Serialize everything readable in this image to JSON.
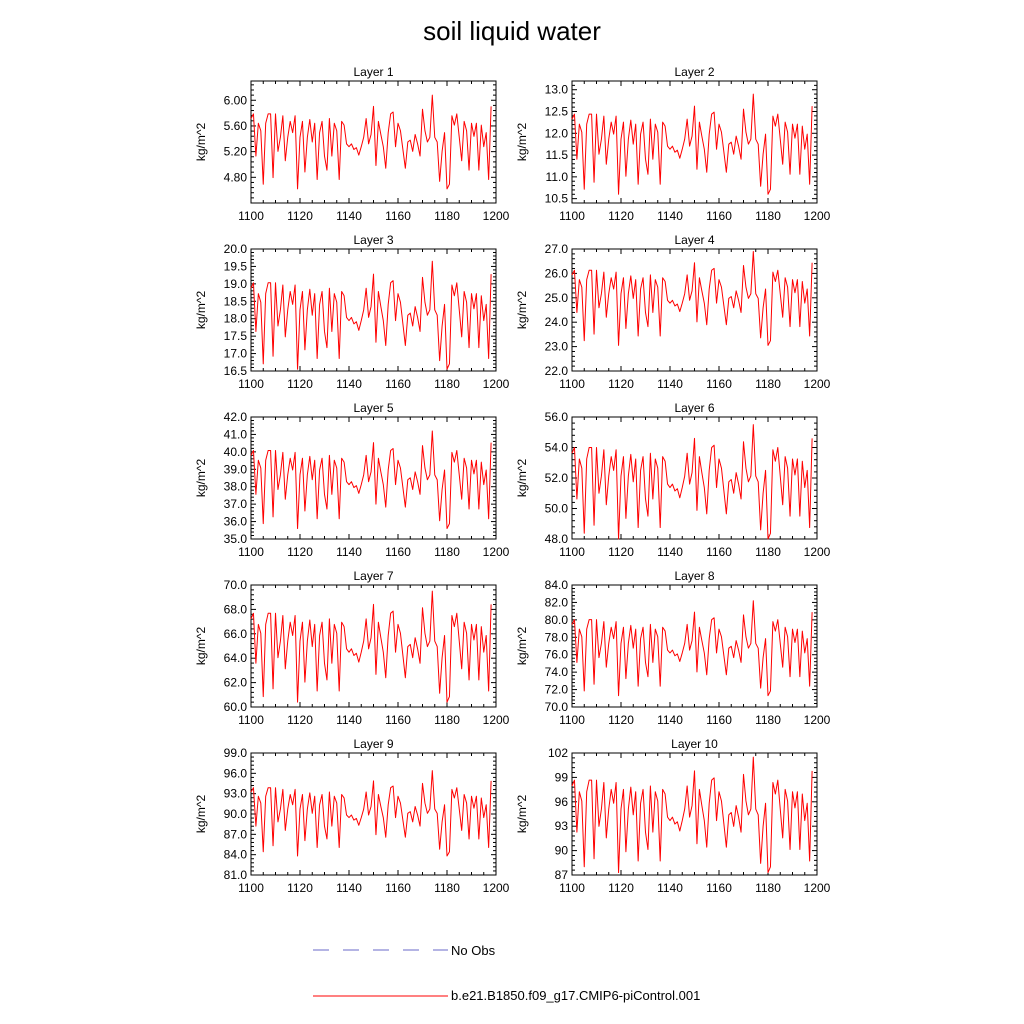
{
  "chart_data": {
    "type": "line",
    "title": "soil liquid water",
    "xlabel": "",
    "ylabel": "kg/m^2",
    "xlim": [
      1100,
      1200
    ],
    "x_ticks": [
      1100,
      1120,
      1140,
      1160,
      1180,
      1200
    ],
    "x": [
      1100,
      1101,
      1102,
      1103,
      1104,
      1105,
      1106,
      1107,
      1108,
      1109,
      1110,
      1111,
      1112,
      1113,
      1114,
      1115,
      1116,
      1117,
      1118,
      1119,
      1120,
      1121,
      1122,
      1123,
      1124,
      1125,
      1126,
      1127,
      1128,
      1129,
      1130,
      1131,
      1132,
      1133,
      1134,
      1135,
      1136,
      1137,
      1138,
      1139,
      1140,
      1141,
      1142,
      1143,
      1144,
      1145,
      1146,
      1147,
      1148,
      1149,
      1150,
      1151,
      1152,
      1153,
      1154,
      1155,
      1156,
      1157,
      1158,
      1159,
      1160,
      1161,
      1162,
      1163,
      1164,
      1165,
      1166,
      1167,
      1168,
      1169,
      1170,
      1171,
      1172,
      1173,
      1174,
      1175,
      1176,
      1177,
      1178,
      1179,
      1180,
      1181,
      1182,
      1183,
      1184,
      1185,
      1186,
      1187,
      1188,
      1189,
      1190,
      1191,
      1192,
      1193,
      1194,
      1195,
      1196,
      1197,
      1198
    ],
    "normalized_pattern": [
      0.75,
      0.8,
      0.35,
      0.7,
      0.62,
      0.05,
      0.7,
      0.8,
      0.8,
      0.12,
      0.8,
      0.4,
      0.55,
      0.78,
      0.3,
      0.55,
      0.72,
      0.6,
      0.78,
      0.0,
      0.55,
      0.72,
      0.18,
      0.55,
      0.74,
      0.5,
      0.7,
      0.1,
      0.6,
      0.72,
      0.35,
      0.2,
      0.75,
      0.35,
      0.7,
      0.62,
      0.1,
      0.72,
      0.68,
      0.48,
      0.45,
      0.48,
      0.42,
      0.44,
      0.36,
      0.45,
      0.55,
      0.75,
      0.48,
      0.58,
      0.88,
      0.25,
      0.72,
      0.58,
      0.45,
      0.22,
      0.6,
      0.8,
      0.82,
      0.45,
      0.7,
      0.62,
      0.42,
      0.22,
      0.5,
      0.52,
      0.4,
      0.58,
      0.48,
      0.35,
      0.85,
      0.62,
      0.5,
      0.55,
      1.0,
      0.55,
      0.5,
      0.08,
      0.4,
      0.6,
      0.0,
      0.05,
      0.78,
      0.68,
      0.8,
      0.55,
      0.3,
      0.72,
      0.62,
      0.2,
      0.7,
      0.56,
      0.7,
      0.2,
      0.68,
      0.45,
      0.6,
      0.1,
      0.88
    ],
    "series_name": "b.e21.B1850.f09_g17.CMIP6-piControl.001",
    "series_color": "#ff0000",
    "panels": [
      {
        "title": "Layer 1",
        "ylim": [
          4.4,
          6.3
        ],
        "y_ticks": [
          4.8,
          5.2,
          5.6,
          6.0
        ],
        "y_tick_labels": [
          "4.80",
          "5.20",
          "5.60",
          "6.00"
        ],
        "data_min": 4.62,
        "data_max": 6.08
      },
      {
        "title": "Layer 2",
        "ylim": [
          10.4,
          13.2
        ],
        "y_ticks": [
          10.5,
          11.0,
          11.5,
          12.0,
          12.5,
          13.0
        ],
        "y_tick_labels": [
          "10.5",
          "11.0",
          "11.5",
          "12.0",
          "12.5",
          "13.0"
        ],
        "data_min": 10.6,
        "data_max": 12.9
      },
      {
        "title": "Layer 3",
        "ylim": [
          16.5,
          20.0
        ],
        "y_ticks": [
          16.5,
          17.0,
          17.5,
          18.0,
          18.5,
          19.0,
          19.5,
          20.0
        ],
        "y_tick_labels": [
          "16.5",
          "17.0",
          "17.5",
          "18.0",
          "18.5",
          "19.0",
          "19.5",
          "20.0"
        ],
        "data_min": 16.55,
        "data_max": 19.65
      },
      {
        "title": "Layer 4",
        "ylim": [
          22.0,
          27.0
        ],
        "y_ticks": [
          22.0,
          23.0,
          24.0,
          25.0,
          26.0,
          27.0
        ],
        "y_tick_labels": [
          "22.0",
          "23.0",
          "24.0",
          "25.0",
          "26.0",
          "27.0"
        ],
        "data_min": 23.05,
        "data_max": 26.9
      },
      {
        "title": "Layer 5",
        "ylim": [
          35.0,
          42.0
        ],
        "y_ticks": [
          35.0,
          36.0,
          37.0,
          38.0,
          39.0,
          40.0,
          41.0,
          42.0
        ],
        "y_tick_labels": [
          "35.0",
          "36.0",
          "37.0",
          "38.0",
          "39.0",
          "40.0",
          "41.0",
          "42.0"
        ],
        "data_min": 35.6,
        "data_max": 41.2
      },
      {
        "title": "Layer 6",
        "ylim": [
          48.0,
          56.0
        ],
        "y_ticks": [
          48.0,
          50.0,
          52.0,
          54.0,
          56.0
        ],
        "y_tick_labels": [
          "48.0",
          "50.0",
          "52.0",
          "54.0",
          "56.0"
        ],
        "data_min": 48.0,
        "data_max": 55.5
      },
      {
        "title": "Layer 7",
        "ylim": [
          60.0,
          70.0
        ],
        "y_ticks": [
          60.0,
          62.0,
          64.0,
          66.0,
          68.0,
          70.0
        ],
        "y_tick_labels": [
          "60.0",
          "62.0",
          "64.0",
          "66.0",
          "68.0",
          "70.0"
        ],
        "data_min": 60.4,
        "data_max": 69.5
      },
      {
        "title": "Layer 8",
        "ylim": [
          70.0,
          84.0
        ],
        "y_ticks": [
          70.0,
          72.0,
          74.0,
          76.0,
          78.0,
          80.0,
          82.0,
          84.0
        ],
        "y_tick_labels": [
          "70.0",
          "72.0",
          "74.0",
          "76.0",
          "78.0",
          "80.0",
          "82.0",
          "84.0"
        ],
        "data_min": 71.3,
        "data_max": 82.2
      },
      {
        "title": "Layer 9",
        "ylim": [
          81.0,
          99.0
        ],
        "y_ticks": [
          81.0,
          84.0,
          87.0,
          90.0,
          93.0,
          96.0,
          99.0
        ],
        "y_tick_labels": [
          "81.0",
          "84.0",
          "87.0",
          "90.0",
          "93.0",
          "96.0",
          "99.0"
        ],
        "data_min": 83.8,
        "data_max": 96.4
      },
      {
        "title": "Layer 10",
        "ylim": [
          87,
          102
        ],
        "y_ticks": [
          87,
          90,
          93,
          96,
          99,
          102
        ],
        "y_tick_labels": [
          "87",
          "90",
          "93",
          "96",
          "99",
          "102"
        ],
        "data_min": 87.3,
        "data_max": 101.5
      }
    ],
    "legend": [
      {
        "label": "No Obs",
        "color": "#6a6ac8",
        "style": "dashed"
      },
      {
        "label": "b.e21.B1850.f09_g17.CMIP6-piControl.001",
        "color": "#ff0000",
        "style": "solid"
      }
    ]
  }
}
